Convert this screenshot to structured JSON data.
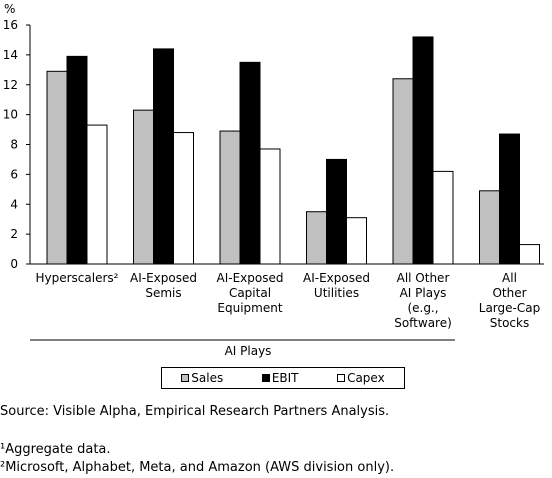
{
  "chart_data": {
    "type": "bar",
    "ylabel": "%",
    "ylim": [
      0,
      16
    ],
    "yticks": [
      "0",
      "2",
      "4",
      "6",
      "8",
      "10",
      "12",
      "14",
      "16"
    ],
    "categories": [
      [
        "Hyperscalers²"
      ],
      [
        "AI-Exposed",
        "Semis"
      ],
      [
        "AI-Exposed",
        "Capital",
        "Equipment"
      ],
      [
        "AI-Exposed",
        "Utilities"
      ],
      [
        "All Other",
        "AI Plays",
        "(e.g.,",
        "Software)"
      ],
      [
        "All",
        "Other",
        "Large-Cap",
        "Stocks"
      ]
    ],
    "group_label": "AI Plays",
    "series": [
      {
        "name": "Sales",
        "color": "#c0c0c0",
        "values": [
          12.9,
          10.3,
          8.9,
          3.5,
          12.4,
          4.9
        ]
      },
      {
        "name": "EBIT",
        "color": "#000000",
        "values": [
          13.9,
          14.4,
          13.5,
          7.0,
          15.2,
          8.7
        ]
      },
      {
        "name": "Capex",
        "color": "#ffffff",
        "values": [
          9.3,
          8.8,
          7.7,
          3.1,
          6.2,
          1.3
        ]
      }
    ]
  },
  "notes": {
    "source": "Source: Visible Alpha, Empirical Research Partners Analysis.",
    "footnote1": "¹Aggregate data.",
    "footnote2": "²Microsoft, Alphabet, Meta, and Amazon (AWS division only)."
  }
}
